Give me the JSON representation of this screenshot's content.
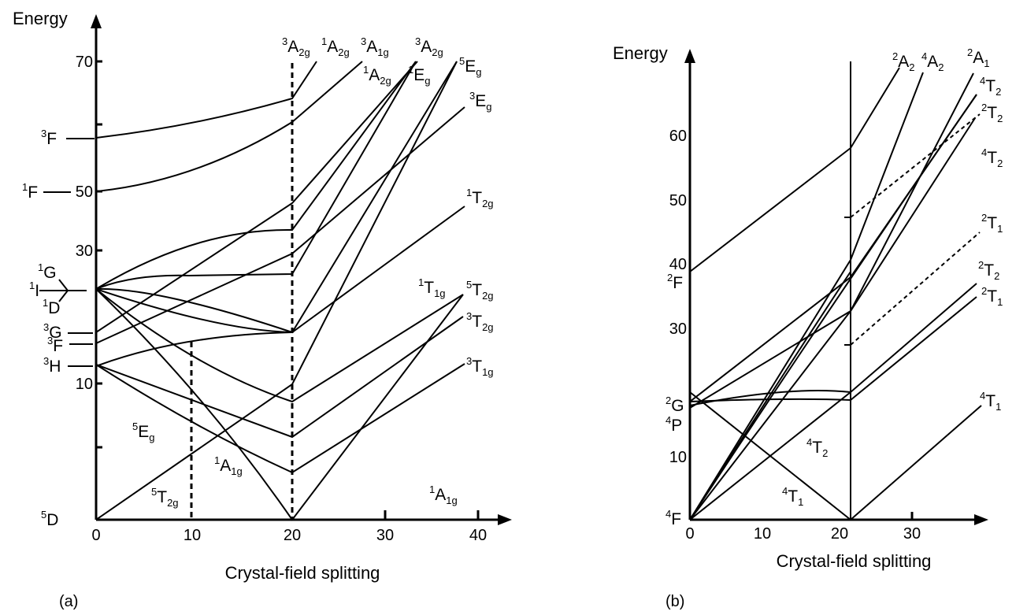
{
  "panel_a": {
    "energy_label": "Energy",
    "xlabel": "Crystal-field splitting",
    "panel_label": "(a)",
    "x_ticks": [
      "0",
      "10",
      "20",
      "30",
      "40"
    ],
    "y_ticks": [
      "10",
      "30",
      "50",
      "70"
    ],
    "free_ion_terms": [
      {
        "sup": "3",
        "main": "F"
      },
      {
        "sup": "1",
        "main": "F"
      },
      {
        "sup": "1",
        "main": "G"
      },
      {
        "sup": "1",
        "main": "I"
      },
      {
        "sup": "1",
        "main": "D"
      },
      {
        "sup": "3",
        "main": "G"
      },
      {
        "sup": "3",
        "main": "F"
      },
      {
        "sup": "3",
        "main": "H"
      },
      {
        "sup": "5",
        "main": "D"
      }
    ],
    "states": [
      {
        "sup": "3",
        "main": "A",
        "sub": "2g"
      },
      {
        "sup": "1",
        "main": "A",
        "sub": "2g"
      },
      {
        "sup": "3",
        "main": "A",
        "sub": "1g"
      },
      {
        "sup": "3",
        "main": "A",
        "sub": "2g"
      },
      {
        "sup": "1",
        "main": "A",
        "sub": "2g"
      },
      {
        "sup": "1",
        "main": "E",
        "sub": "g"
      },
      {
        "sup": "5",
        "main": "E",
        "sub": "g"
      },
      {
        "sup": "3",
        "main": "E",
        "sub": "g"
      },
      {
        "sup": "1",
        "main": "T",
        "sub": "2g"
      },
      {
        "sup": "1",
        "main": "T",
        "sub": "1g"
      },
      {
        "sup": "5",
        "main": "T",
        "sub": "2g"
      },
      {
        "sup": "3",
        "main": "T",
        "sub": "2g"
      },
      {
        "sup": "3",
        "main": "T",
        "sub": "1g"
      },
      {
        "sup": "5",
        "main": "E",
        "sub": "g"
      },
      {
        "sup": "1",
        "main": "A",
        "sub": "1g"
      },
      {
        "sup": "5",
        "main": "T",
        "sub": "2g"
      },
      {
        "sup": "1",
        "main": "A",
        "sub": "1g"
      }
    ]
  },
  "panel_b": {
    "energy_label": "Energy",
    "xlabel": "Crystal-field splitting",
    "panel_label": "(b)",
    "x_ticks": [
      "0",
      "10",
      "20",
      "30"
    ],
    "y_ticks": [
      "10",
      "30",
      "40",
      "50",
      "60"
    ],
    "free_ion_terms": [
      {
        "sup": "2",
        "main": "F"
      },
      {
        "sup": "2",
        "main": "G"
      },
      {
        "sup": "4",
        "main": "P"
      },
      {
        "sup": "4",
        "main": "F"
      }
    ],
    "states": [
      {
        "sup": "2",
        "main": "A",
        "sub": "2"
      },
      {
        "sup": "4",
        "main": "A",
        "sub": "2"
      },
      {
        "sup": "2",
        "main": "A",
        "sub": "1"
      },
      {
        "sup": "4",
        "main": "T",
        "sub": "2"
      },
      {
        "sup": "2",
        "main": "T",
        "sub": "2"
      },
      {
        "sup": "4",
        "main": "T",
        "sub": "2"
      },
      {
        "sup": "2",
        "main": "T",
        "sub": "1"
      },
      {
        "sup": "2",
        "main": "T",
        "sub": "2"
      },
      {
        "sup": "2",
        "main": "T",
        "sub": "1"
      },
      {
        "sup": "4",
        "main": "T",
        "sub": "1"
      },
      {
        "sup": "4",
        "main": "T",
        "sub": "2"
      },
      {
        "sup": "4",
        "main": "T",
        "sub": "1"
      }
    ]
  }
}
